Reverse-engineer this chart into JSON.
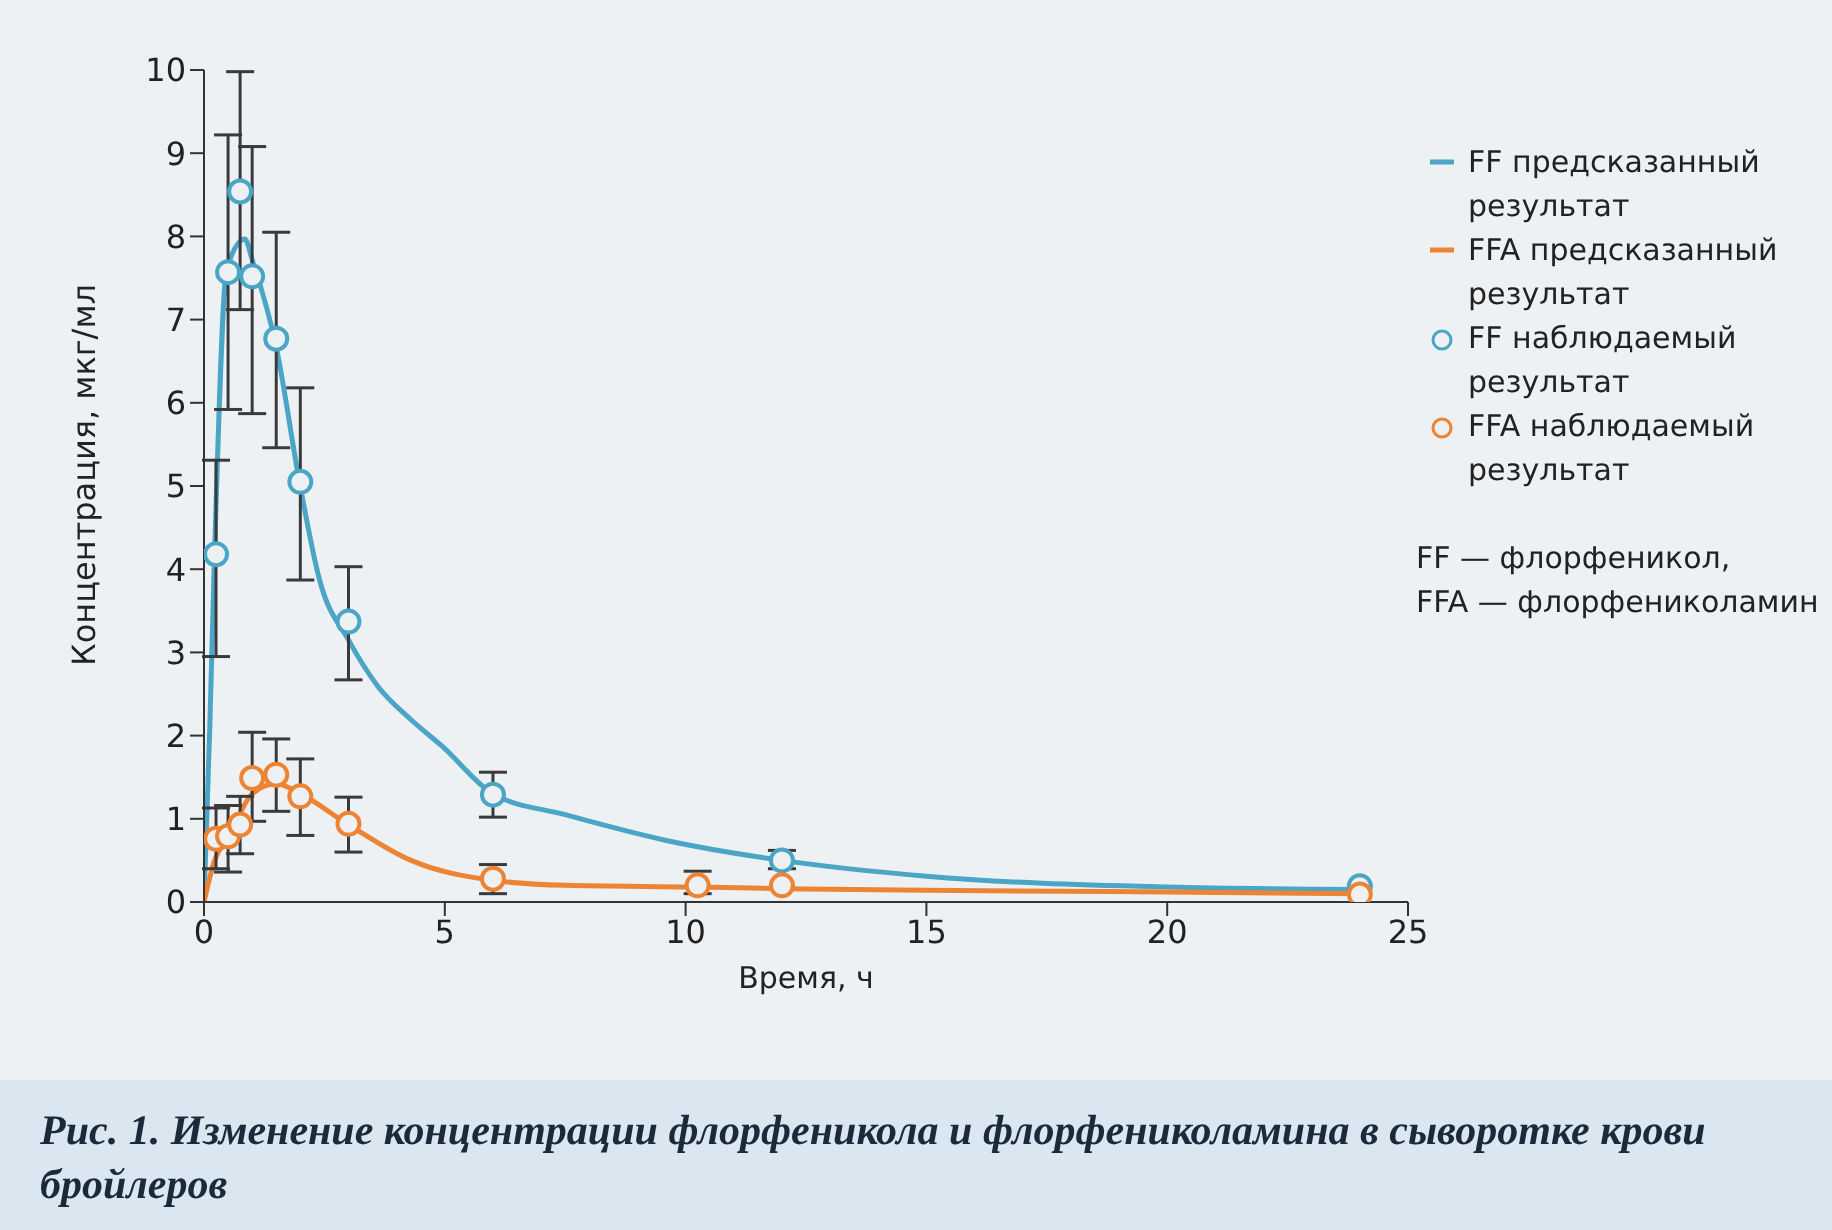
{
  "chart_data": {
    "type": "line",
    "xlabel": "Время, ч",
    "ylabel": "Концентрация, мкг/мл",
    "xlim": [
      0,
      25
    ],
    "xticks": [
      0,
      5,
      10,
      15,
      20,
      25
    ],
    "ylim": [
      0,
      10
    ],
    "yticks": [
      0,
      1,
      2,
      3,
      4,
      5,
      6,
      7,
      8,
      9,
      10
    ],
    "grid": false,
    "legend": "top right",
    "series": [
      {
        "name": "FF предсказанный результат",
        "marker": "none",
        "color": "#4aa5c6",
        "x": [
          0,
          0.12,
          0.22,
          0.47,
          0.85,
          1,
          1.5,
          2,
          2.4,
          3,
          3.6,
          4.3,
          4.95,
          6,
          7.5,
          9.6,
          12,
          15,
          20,
          24
        ],
        "values": [
          0,
          2.1,
          4.2,
          7.6,
          7.97,
          7.72,
          6.67,
          4.99,
          3.87,
          3.15,
          2.6,
          2.19,
          1.87,
          1.3,
          1.05,
          0.74,
          0.5,
          0.31,
          0.18,
          0.15
        ]
      },
      {
        "name": "FFA предсказанный результат",
        "marker": "none",
        "color": "#ec8434",
        "x": [
          0,
          0.22,
          0.5,
          1,
          1.5,
          2,
          3,
          4.3,
          6,
          7.5,
          10.25,
          12,
          15,
          20,
          24
        ],
        "values": [
          0,
          0.5,
          0.77,
          1.3,
          1.42,
          1.3,
          0.93,
          0.5,
          0.26,
          0.2,
          0.18,
          0.16,
          0.14,
          0.12,
          0.1
        ]
      },
      {
        "name": "FF наблюдаемый результат",
        "type": "scatter",
        "marker": "circle",
        "color": "#4aa5c6",
        "x": [
          0.25,
          0.5,
          0.75,
          1,
          1.5,
          2,
          3,
          6,
          12,
          24
        ],
        "values": [
          4.18,
          7.57,
          8.54,
          7.52,
          6.77,
          5.05,
          3.37,
          1.29,
          0.5,
          0.19
        ],
        "errors": [
          [
            2.95,
            5.31
          ],
          [
            5.92,
            9.22
          ],
          [
            7.12,
            9.98
          ],
          [
            5.87,
            9.08
          ],
          [
            5.46,
            8.05
          ],
          [
            3.87,
            6.18
          ],
          [
            2.67,
            4.03
          ],
          [
            1.02,
            1.56
          ],
          [
            0.4,
            0.62
          ],
          null
        ]
      },
      {
        "name": "FFA наблюдаемый результат",
        "type": "scatter",
        "marker": "circle",
        "color": "#ec8434",
        "x": [
          0.25,
          0.5,
          0.75,
          1,
          1.5,
          2,
          3,
          6,
          10.25,
          12,
          24
        ],
        "values": [
          0.76,
          0.79,
          0.93,
          1.49,
          1.53,
          1.27,
          0.94,
          0.28,
          0.2,
          0.2,
          0.09
        ],
        "errors": [
          [
            0.4,
            1.13
          ],
          [
            0.36,
            1.16
          ],
          [
            0.58,
            1.27
          ],
          [
            0.97,
            2.04
          ],
          [
            1.09,
            1.96
          ],
          [
            0.8,
            1.72
          ],
          [
            0.6,
            1.26
          ],
          [
            0.1,
            0.45
          ],
          [
            0.1,
            0.37
          ],
          null,
          null
        ]
      }
    ],
    "annotations": [
      "FF — флорфеникол,",
      "FFA — флорфениколамин",
      "Рис. 1. Изменение концентрации флорфеникола и флорфениколамина в сыворотке крови бройлеров"
    ]
  }
}
